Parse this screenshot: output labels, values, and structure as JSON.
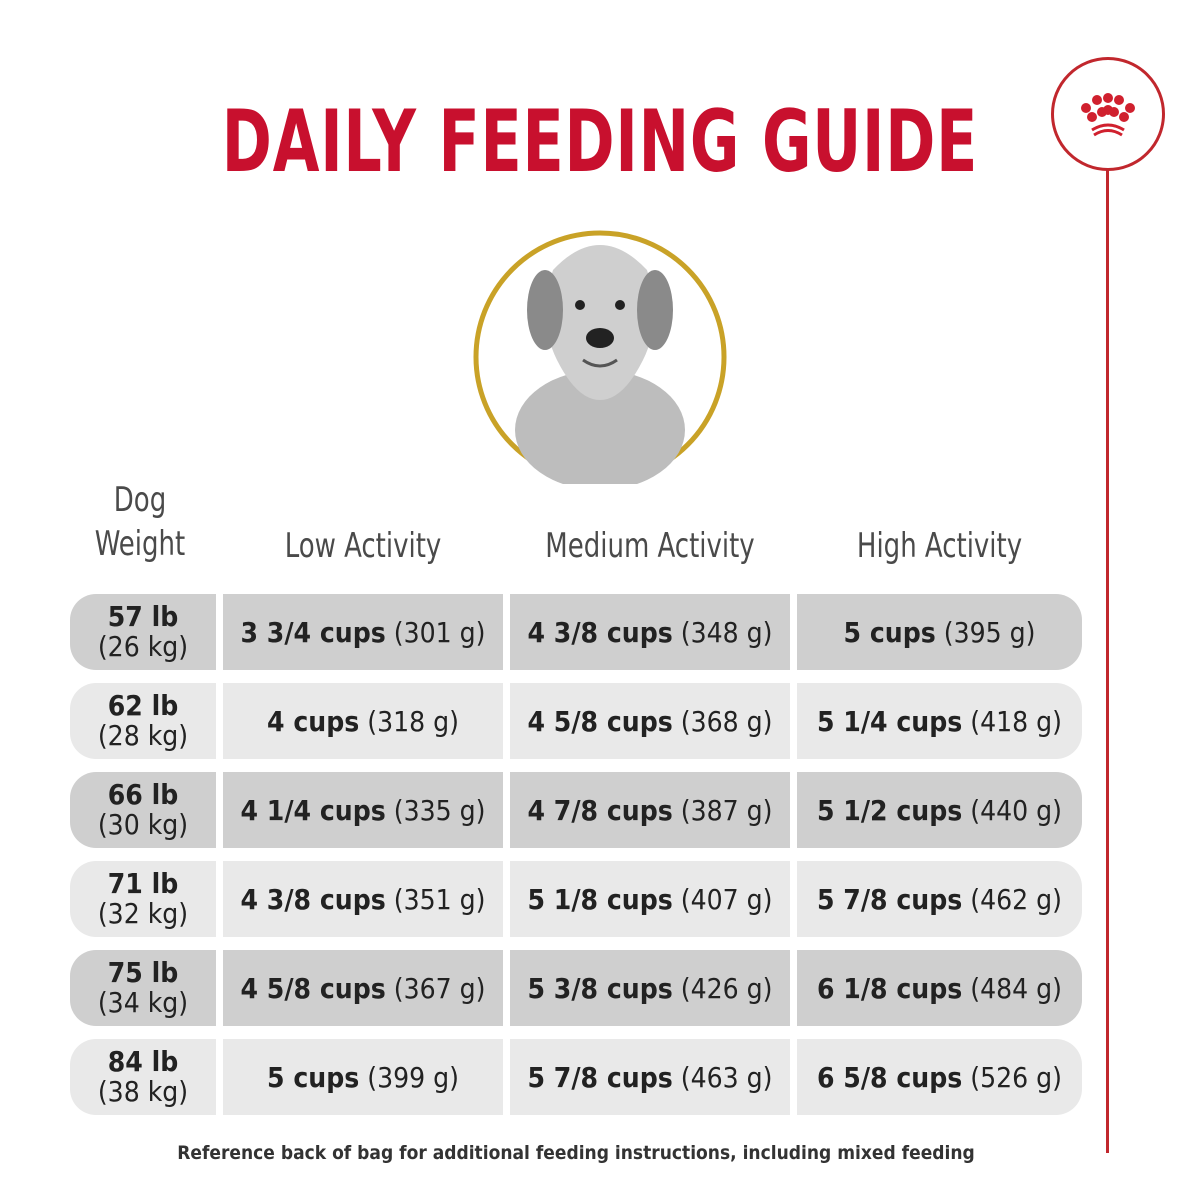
{
  "title": "DAILY FEEDING GUIDE",
  "brand": {
    "logo": "crown-logo",
    "color": "#c1272d"
  },
  "headers": {
    "weight_line1": "Dog",
    "weight_line2": "Weight",
    "low": "Low Activity",
    "medium": "Medium Activity",
    "high": "High Activity"
  },
  "rows": [
    {
      "lb": "57 lb",
      "kg": "(26 kg)",
      "low_cups": "3 3/4 cups",
      "low_g": "(301 g)",
      "med_cups": "4 3/8 cups",
      "med_g": "(348 g)",
      "high_cups": "5 cups",
      "high_g": "(395 g)"
    },
    {
      "lb": "62 lb",
      "kg": "(28 kg)",
      "low_cups": "4 cups",
      "low_g": "(318 g)",
      "med_cups": "4 5/8 cups",
      "med_g": "(368 g)",
      "high_cups": "5 1/4 cups",
      "high_g": "(418 g)"
    },
    {
      "lb": "66 lb",
      "kg": "(30 kg)",
      "low_cups": "4 1/4 cups",
      "low_g": "(335 g)",
      "med_cups": "4 7/8 cups",
      "med_g": "(387 g)",
      "high_cups": "5 1/2 cups",
      "high_g": "(440 g)"
    },
    {
      "lb": "71 lb",
      "kg": "(32 kg)",
      "low_cups": "4 3/8 cups",
      "low_g": "(351 g)",
      "med_cups": "5 1/8 cups",
      "med_g": "(407 g)",
      "high_cups": "5 7/8 cups",
      "high_g": "(462 g)"
    },
    {
      "lb": "75 lb",
      "kg": "(34 kg)",
      "low_cups": "4 5/8 cups",
      "low_g": "(367 g)",
      "med_cups": "5 3/8 cups",
      "med_g": "(426 g)",
      "high_cups": "6 1/8 cups",
      "high_g": "(484 g)"
    },
    {
      "lb": "84 lb",
      "kg": "(38 kg)",
      "low_cups": "5 cups",
      "low_g": "(399 g)",
      "med_cups": "5 7/8 cups",
      "med_g": "(463 g)",
      "high_cups": "6 5/8 cups",
      "high_g": "(526 g)"
    }
  ],
  "footer": "Reference back of bag for additional feeding instructions, including mixed feeding"
}
